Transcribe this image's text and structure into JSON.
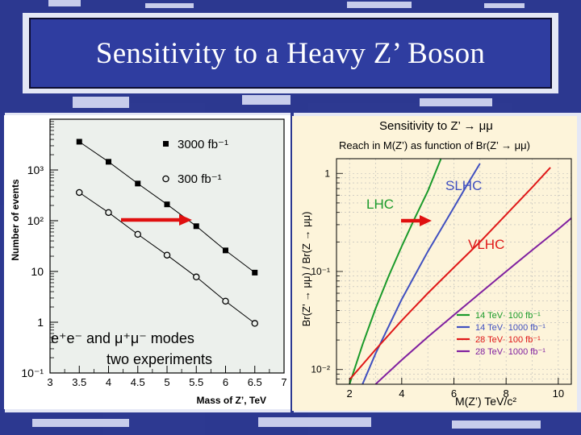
{
  "slide": {
    "title": "Sensitivity to a Heavy Z’ Boson",
    "colors": {
      "title_bg": "#2f3da0",
      "title_text": "#ffffff",
      "bg_dark": "#1d2a88",
      "bg_light": "#dfe3f4",
      "arrow": "#e01010"
    }
  },
  "chart_data": [
    {
      "type": "scatter",
      "title": "",
      "xlabel": "Mass of Z’, TeV",
      "ylabel": "Number of events",
      "x_ticks": [
        "3",
        "3.5",
        "4",
        "4.5",
        "5",
        "5.5",
        "6",
        "6.5",
        "7"
      ],
      "y_ticks": [
        "10⁻¹",
        "1",
        "10",
        "10²",
        "10³"
      ],
      "xlim": [
        3,
        7
      ],
      "ylim_log10": [
        -1,
        4
      ],
      "log_y": true,
      "series": [
        {
          "name": "3000 fb⁻¹",
          "marker": "filled-square",
          "x": [
            3.5,
            4.0,
            4.5,
            5.0,
            5.5,
            6.0,
            6.5
          ],
          "y": [
            3600,
            1450,
            540,
            210,
            78,
            26,
            9.5
          ]
        },
        {
          "name": "300 fb⁻¹",
          "marker": "open-circle",
          "x": [
            3.5,
            4.0,
            4.5,
            5.0,
            5.5,
            6.0,
            6.5
          ],
          "y": [
            360,
            145,
            54,
            21,
            7.8,
            2.6,
            0.95
          ]
        }
      ],
      "annotations": [
        "e⁺e⁻ and μ⁺μ⁻ modes",
        "two experiments"
      ]
    },
    {
      "type": "line",
      "title": "Sensitivity to Z’ → μμ",
      "subtitle": "Reach in M(Z’) as function of Br(Z’ → μμ)",
      "xlabel": "M(Z’) TeV/c²",
      "ylabel": "Br(Z’ → μμ) / Br(Z → μμ)",
      "x_ticks": [
        "2",
        "4",
        "6",
        "8",
        "10"
      ],
      "y_ticks": [
        "1",
        "10⁻¹",
        "10⁻²"
      ],
      "xlim": [
        1.5,
        10.5
      ],
      "ylim_log10": [
        -2.15,
        0.15
      ],
      "log_y": true,
      "grid": true,
      "legend_position": "bottom-right",
      "curve_labels": [
        "LHC",
        "SLHC",
        "VLHC"
      ],
      "series": [
        {
          "name": "14 TeV· 100 fb⁻¹",
          "color": "#1a9a2a",
          "x": [
            2.0,
            2.5,
            3.0,
            3.5,
            4.0,
            4.5,
            5.0,
            5.5
          ],
          "y": [
            0.0071,
            0.018,
            0.042,
            0.09,
            0.18,
            0.35,
            0.66,
            1.4
          ]
        },
        {
          "name": "14 TeV· 1000 fb⁻¹",
          "color": "#4050c0",
          "x": [
            2.5,
            3.0,
            4.0,
            5.0,
            6.0,
            6.5,
            7.0
          ],
          "y": [
            0.0071,
            0.0146,
            0.052,
            0.16,
            0.45,
            0.76,
            1.26
          ]
        },
        {
          "name": "28 TeV· 100 fb⁻¹",
          "color": "#e01818",
          "x": [
            2.0,
            3.0,
            4.0,
            5.0,
            6.0,
            7.0,
            8.0,
            9.0,
            9.7
          ],
          "y": [
            0.0079,
            0.016,
            0.0316,
            0.06,
            0.11,
            0.2,
            0.38,
            0.72,
            1.15
          ]
        },
        {
          "name": "28 TeV· 1000 fb⁻¹",
          "color": "#8020a0",
          "x": [
            3.0,
            4.0,
            5.0,
            6.0,
            7.0,
            8.0,
            9.0,
            10.0,
            10.5
          ],
          "y": [
            0.0071,
            0.0125,
            0.0215,
            0.036,
            0.06,
            0.1,
            0.165,
            0.27,
            0.35
          ]
        }
      ]
    }
  ]
}
